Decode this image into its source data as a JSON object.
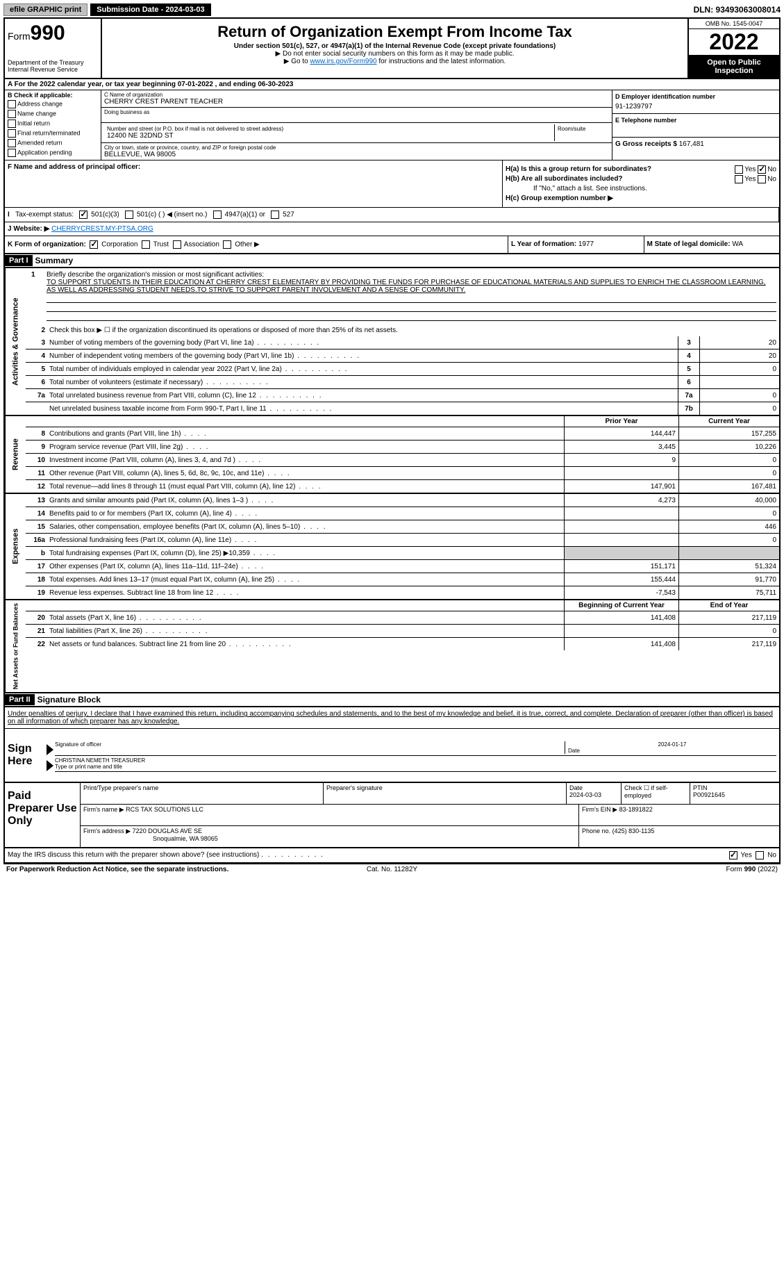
{
  "topbar": {
    "efile": "efile GRAPHIC print",
    "submission_label": "Submission Date - 2024-03-03",
    "dln_label": "DLN: 93493063008014"
  },
  "header": {
    "form_prefix": "Form",
    "form_number": "990",
    "title": "Return of Organization Exempt From Income Tax",
    "subtitle": "Under section 501(c), 527, or 4947(a)(1) of the Internal Revenue Code (except private foundations)",
    "note1": "▶ Do not enter social security numbers on this form as it may be made public.",
    "note2_pre": "▶ Go to ",
    "note2_link": "www.irs.gov/Form990",
    "note2_post": " for instructions and the latest information.",
    "dept": "Department of the Treasury",
    "irs": "Internal Revenue Service",
    "omb": "OMB No. 1545-0047",
    "year": "2022",
    "open": "Open to Public Inspection"
  },
  "row_a": "A For the 2022 calendar year, or tax year beginning 07-01-2022    , and ending 06-30-2023",
  "section_b": {
    "header": "B Check if applicable:",
    "items": [
      "Address change",
      "Name change",
      "Initial return",
      "Final return/terminated",
      "Amended return",
      "Application pending"
    ]
  },
  "section_c": {
    "name_label": "C Name of organization",
    "name": "CHERRY CREST PARENT TEACHER",
    "dba_label": "Doing business as",
    "dba": "",
    "street_label": "Number and street (or P.O. box if mail is not delivered to street address)",
    "street": "12400 NE 32DND ST",
    "room_label": "Room/suite",
    "city_label": "City or town, state or province, country, and ZIP or foreign postal code",
    "city": "BELLEVUE, WA  98005"
  },
  "section_d": {
    "ein_label": "D Employer identification number",
    "ein": "91-1239797",
    "phone_label": "E Telephone number",
    "phone": "",
    "gross_label": "G Gross receipts $",
    "gross": "167,481"
  },
  "section_f": {
    "label": "F  Name and address of principal officer:",
    "value": ""
  },
  "section_h": {
    "ha": "H(a)  Is this a group return for subordinates?",
    "hb": "H(b)  Are all subordinates included?",
    "hb_note": "If \"No,\" attach a list. See instructions.",
    "hc": "H(c)  Group exemption number ▶",
    "yes": "Yes",
    "no": "No"
  },
  "row_i": {
    "label": "Tax-exempt status:",
    "opt1": "501(c)(3)",
    "opt2": "501(c) (  ) ◀ (insert no.)",
    "opt3": "4947(a)(1) or",
    "opt4": "527"
  },
  "row_j": {
    "label": "J   Website: ▶",
    "url": "CHERRYCREST.MY-PTSA.ORG"
  },
  "row_k": {
    "label": "K Form of organization:",
    "corp": "Corporation",
    "trust": "Trust",
    "assoc": "Association",
    "other": "Other ▶",
    "l_label": "L Year of formation:",
    "l_val": "1977",
    "m_label": "M State of legal domicile:",
    "m_val": "WA"
  },
  "parts": {
    "p1": "Part I",
    "p1_title": "Summary",
    "p2": "Part II",
    "p2_title": "Signature Block"
  },
  "summary": {
    "tab1": "Activities & Governance",
    "tab2": "Revenue",
    "tab3": "Expenses",
    "tab4": "Net Assets or Fund Balances",
    "line1_label": "Briefly describe the organization's mission or most significant activities:",
    "mission": "TO SUPPORT STUDENTS IN THEIR EDUCATION AT CHERRY CREST ELEMENTARY BY PROVIDING THE FUNDS FOR PURCHASE OF EDUCATIONAL MATERIALS AND SUPPLIES TO ENRICH THE CLASSROOM LEARNING, AS WELL AS ADDRESSING STUDENT NEEDS.TO STRIVE TO SUPPORT PARENT INVOLVEMENT AND A SENSE OF COMMUNITY.",
    "line2": "Check this box ▶ ☐  if the organization discontinued its operations or disposed of more than 25% of its net assets.",
    "lines_gov": [
      {
        "n": "3",
        "d": "Number of voting members of the governing body (Part VI, line 1a)",
        "b": "3",
        "v": "20"
      },
      {
        "n": "4",
        "d": "Number of independent voting members of the governing body (Part VI, line 1b)",
        "b": "4",
        "v": "20"
      },
      {
        "n": "5",
        "d": "Total number of individuals employed in calendar year 2022 (Part V, line 2a)",
        "b": "5",
        "v": "0"
      },
      {
        "n": "6",
        "d": "Total number of volunteers (estimate if necessary)",
        "b": "6",
        "v": ""
      },
      {
        "n": "7a",
        "d": "Total unrelated business revenue from Part VIII, column (C), line 12",
        "b": "7a",
        "v": "0"
      },
      {
        "n": "",
        "d": "Net unrelated business taxable income from Form 990-T, Part I, line 11",
        "b": "7b",
        "v": "0"
      }
    ],
    "hdr_prior": "Prior Year",
    "hdr_current": "Current Year",
    "hdr_begin": "Beginning of Current Year",
    "hdr_end": "End of Year",
    "lines_rev": [
      {
        "n": "8",
        "d": "Contributions and grants (Part VIII, line 1h)",
        "p": "144,447",
        "c": "157,255"
      },
      {
        "n": "9",
        "d": "Program service revenue (Part VIII, line 2g)",
        "p": "3,445",
        "c": "10,226"
      },
      {
        "n": "10",
        "d": "Investment income (Part VIII, column (A), lines 3, 4, and 7d )",
        "p": "9",
        "c": "0"
      },
      {
        "n": "11",
        "d": "Other revenue (Part VIII, column (A), lines 5, 6d, 8c, 9c, 10c, and 11e)",
        "p": "",
        "c": "0"
      },
      {
        "n": "12",
        "d": "Total revenue—add lines 8 through 11 (must equal Part VIII, column (A), line 12)",
        "p": "147,901",
        "c": "167,481"
      }
    ],
    "lines_exp": [
      {
        "n": "13",
        "d": "Grants and similar amounts paid (Part IX, column (A), lines 1–3 )",
        "p": "4,273",
        "c": "40,000"
      },
      {
        "n": "14",
        "d": "Benefits paid to or for members (Part IX, column (A), line 4)",
        "p": "",
        "c": "0"
      },
      {
        "n": "15",
        "d": "Salaries, other compensation, employee benefits (Part IX, column (A), lines 5–10)",
        "p": "",
        "c": "446"
      },
      {
        "n": "16a",
        "d": "Professional fundraising fees (Part IX, column (A), line 11e)",
        "p": "",
        "c": "0"
      },
      {
        "n": "b",
        "d": "Total fundraising expenses (Part IX, column (D), line 25) ▶10,359",
        "p": "shaded",
        "c": "shaded"
      },
      {
        "n": "17",
        "d": "Other expenses (Part IX, column (A), lines 11a–11d, 11f–24e)",
        "p": "151,171",
        "c": "51,324"
      },
      {
        "n": "18",
        "d": "Total expenses. Add lines 13–17 (must equal Part IX, column (A), line 25)",
        "p": "155,444",
        "c": "91,770"
      },
      {
        "n": "19",
        "d": "Revenue less expenses. Subtract line 18 from line 12",
        "p": "-7,543",
        "c": "75,711"
      }
    ],
    "lines_net": [
      {
        "n": "20",
        "d": "Total assets (Part X, line 16)",
        "p": "141,408",
        "c": "217,119"
      },
      {
        "n": "21",
        "d": "Total liabilities (Part X, line 26)",
        "p": "",
        "c": "0"
      },
      {
        "n": "22",
        "d": "Net assets or fund balances. Subtract line 21 from line 20",
        "p": "141,408",
        "c": "217,119"
      }
    ]
  },
  "signature": {
    "disclaimer": "Under penalties of perjury, I declare that I have examined this return, including accompanying schedules and statements, and to the best of my knowledge and belief, it is true, correct, and complete. Declaration of preparer (other than officer) is based on all information of which preparer has any knowledge.",
    "sign_here": "Sign Here",
    "sig_officer": "Signature of officer",
    "date": "Date",
    "date_val": "2024-01-17",
    "name_title": "CHRISTINA NEMETH  TREASURER",
    "name_title_label": "Type or print name and title",
    "paid": "Paid Preparer Use Only",
    "print_name_label": "Print/Type preparer's name",
    "prep_sig_label": "Preparer's signature",
    "prep_date_label": "Date",
    "prep_date": "2024-03-03",
    "check_if": "Check ☐ if self-employed",
    "ptin_label": "PTIN",
    "ptin": "P00921645",
    "firm_name_label": "Firm's name    ▶",
    "firm_name": "RCS TAX SOLUTIONS LLC",
    "firm_ein_label": "Firm's EIN ▶",
    "firm_ein": "83-1891822",
    "firm_addr_label": "Firm's address ▶",
    "firm_addr1": "7220 DOUGLAS AVE SE",
    "firm_addr2": "Snoqualmie, WA  98065",
    "phone_label": "Phone no.",
    "phone": "(425) 830-1135",
    "may_irs": "May the IRS discuss this return with the preparer shown above? (see instructions)"
  },
  "footer": {
    "left": "For Paperwork Reduction Act Notice, see the separate instructions.",
    "mid": "Cat. No. 11282Y",
    "right_form": "Form 990 (2022)"
  }
}
